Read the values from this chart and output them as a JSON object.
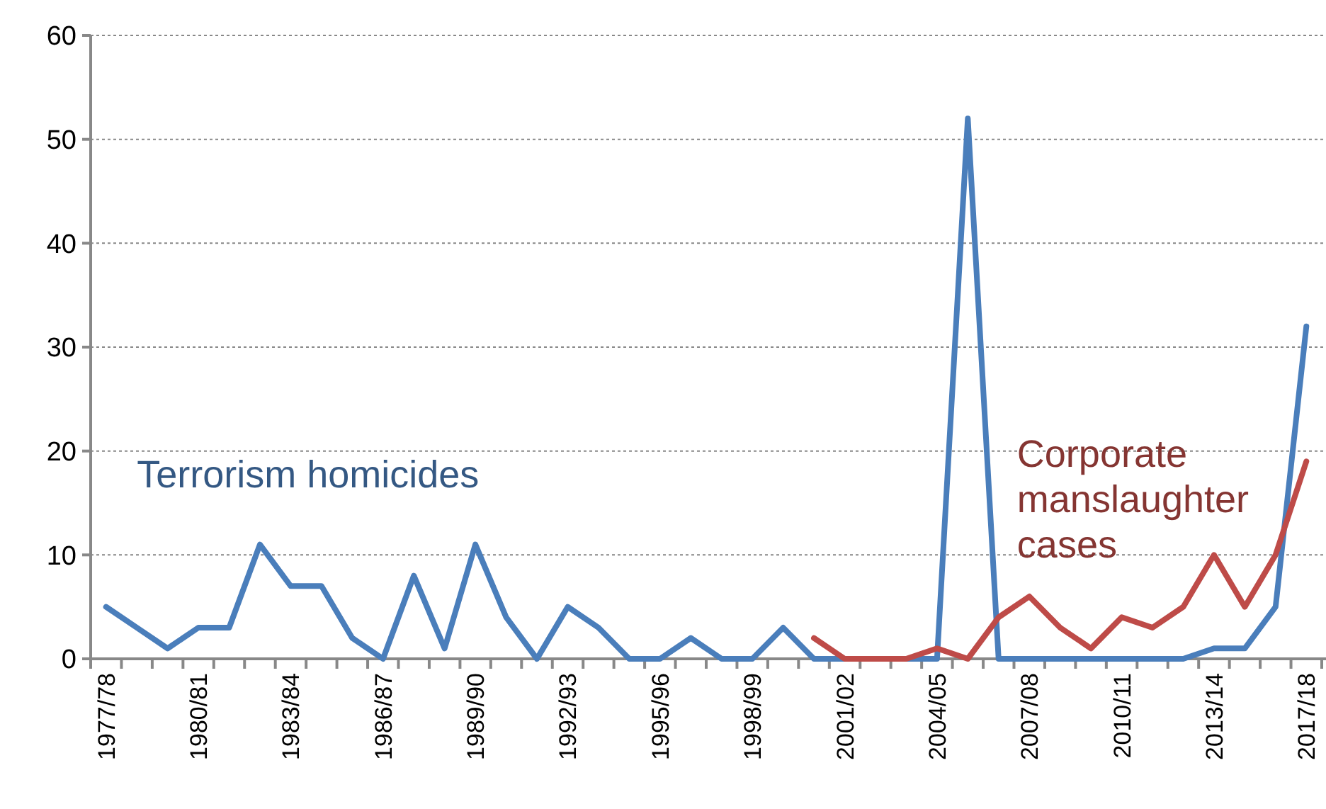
{
  "chart_data": {
    "type": "line",
    "categories": [
      "1977/78",
      null,
      null,
      "1980/81",
      null,
      null,
      "1983/84",
      null,
      null,
      "1986/87",
      null,
      null,
      "1989/90",
      null,
      null,
      "1992/93",
      null,
      null,
      "1995/96",
      null,
      null,
      "1998/99",
      null,
      null,
      "2001/02",
      null,
      null,
      "2004/05",
      null,
      null,
      "2007/08",
      null,
      null,
      "2010/11",
      null,
      null,
      "2013/14",
      null,
      null,
      "2017/18"
    ],
    "series": [
      {
        "name": "Terrorism homicides",
        "color": "#4a7ebb",
        "values": [
          5,
          3,
          1,
          3,
          3,
          11,
          7,
          7,
          2,
          0,
          8,
          1,
          11,
          4,
          0,
          5,
          3,
          0,
          0,
          2,
          0,
          0,
          3,
          0,
          0,
          0,
          0,
          0,
          52,
          0,
          0,
          0,
          0,
          0,
          0,
          0,
          1,
          1,
          5,
          32
        ]
      },
      {
        "name": "Corporate manslaughter cases",
        "color": "#be4b48",
        "values": [
          null,
          null,
          null,
          null,
          null,
          null,
          null,
          null,
          null,
          null,
          null,
          null,
          null,
          null,
          null,
          null,
          null,
          null,
          null,
          null,
          null,
          null,
          null,
          2,
          0,
          0,
          0,
          1,
          0,
          4,
          6,
          3,
          1,
          4,
          3,
          5,
          10,
          5,
          10,
          19
        ]
      }
    ],
    "ylim": [
      0,
      60
    ],
    "yticks": [
      0,
      10,
      20,
      30,
      40,
      50,
      60
    ],
    "grid": "y",
    "marker": "none",
    "line_style": "solid"
  }
}
